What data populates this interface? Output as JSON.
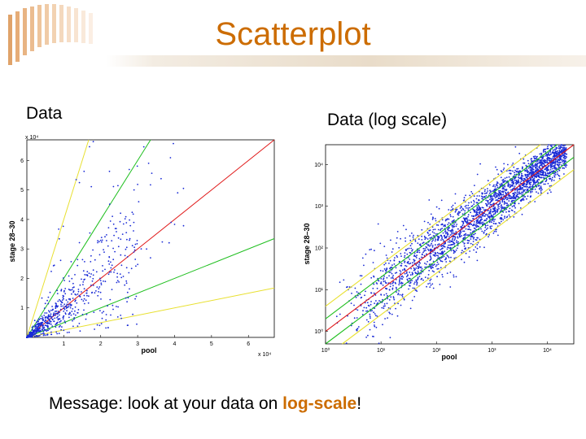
{
  "slide": {
    "title": "Scatterplot",
    "left_label": "Data",
    "right_label": "Data (log scale)",
    "message": {
      "prefix": "Message: look at your data on ",
      "highlight": "log-scale",
      "suffix": "!"
    }
  },
  "colors": {
    "title": "#cc6c00",
    "accent": "#cc6c00",
    "points": "#1a2bd6",
    "line_equal": "#e01818",
    "line_2fold": "#1fbf1f",
    "line_4fold": "#e8e030"
  },
  "chart_data": [
    {
      "type": "scatter",
      "title": "",
      "xlabel": "pool",
      "ylabel": "stage 28–30",
      "x_ticks": [
        "1",
        "2",
        "3",
        "4",
        "5",
        "6"
      ],
      "y_ticks": [
        "1",
        "2",
        "3",
        "4",
        "5",
        "6"
      ],
      "x_multiplier": "x 10⁴",
      "y_multiplier": "x 10⁴",
      "xlim": [
        0,
        67000
      ],
      "ylim": [
        0,
        67000
      ],
      "grid": false,
      "reference_lines": [
        {
          "slope": 0.25,
          "color": "yellow"
        },
        {
          "slope": 0.5,
          "color": "green"
        },
        {
          "slope": 1,
          "color": "red"
        },
        {
          "slope": 2,
          "color": "green"
        },
        {
          "slope": 4,
          "color": "yellow"
        }
      ],
      "points_note": "dense cloud near origin along y = x, sparse scatter above the diagonal"
    },
    {
      "type": "scatter",
      "title": "",
      "xlabel": "pool",
      "ylabel": "stage 28–30",
      "log_scale": true,
      "x_ticks": [
        "10⁰",
        "10¹",
        "10²",
        "10³",
        "10⁴"
      ],
      "y_ticks": [
        "10⁰",
        "10¹",
        "10²",
        "10³",
        "10⁴"
      ],
      "xlim": [
        1,
        30000
      ],
      "ylim": [
        0.5,
        30000
      ],
      "grid": false,
      "reference_lines": [
        {
          "factor": 0.25,
          "color": "yellow"
        },
        {
          "factor": 0.5,
          "color": "green"
        },
        {
          "factor": 1,
          "color": "red"
        },
        {
          "factor": 2,
          "color": "green"
        },
        {
          "factor": 4,
          "color": "yellow"
        }
      ],
      "points_note": "elongated dense band along the diagonal from ~10¹ to ~10⁴"
    }
  ]
}
